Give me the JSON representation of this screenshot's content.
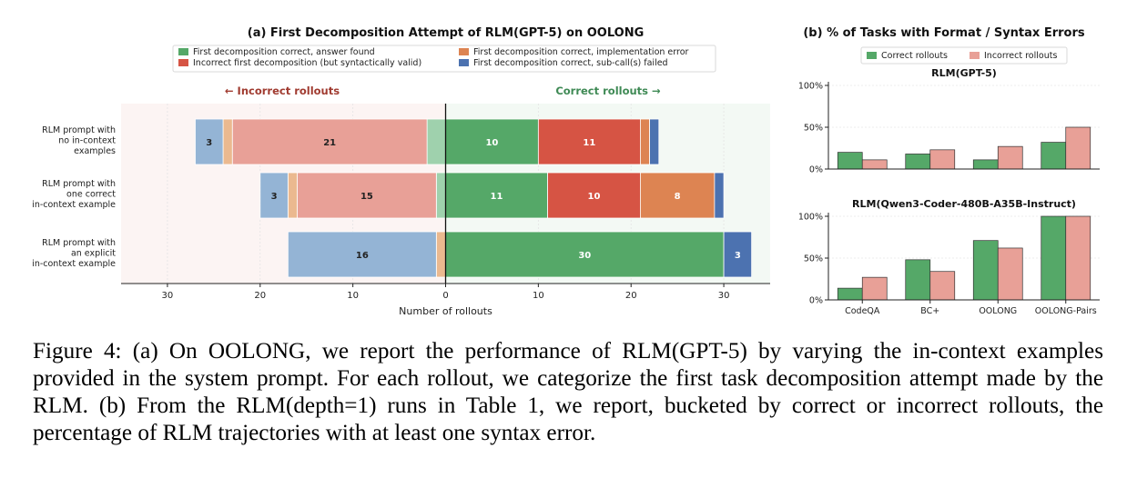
{
  "chart_data": [
    {
      "type": "bar",
      "orientation": "horizontal-diverging",
      "title": "(a) First Decomposition Attempt of RLM(GPT-5) on OOLONG",
      "xlabel": "Number of rollouts",
      "left_label": "← Incorrect rollouts",
      "right_label": "Correct rollouts →",
      "xticks": [
        {
          "value": -30,
          "label": "30"
        },
        {
          "value": -20,
          "label": "20"
        },
        {
          "value": -10,
          "label": "10"
        },
        {
          "value": 0,
          "label": "0"
        },
        {
          "value": 10,
          "label": "10"
        },
        {
          "value": 20,
          "label": "20"
        },
        {
          "value": 30,
          "label": "30"
        }
      ],
      "xlim": [
        -35,
        35
      ],
      "legend": [
        {
          "label": "First decomposition correct, answer found",
          "color": "#55a868"
        },
        {
          "label": "Incorrect first decomposition (but syntactically valid)",
          "color": "#d65444"
        },
        {
          "label": "First decomposition correct, implementation error",
          "color": "#dd8452"
        },
        {
          "label": "First decomposition correct, sub-call(s) failed",
          "color": "#4c72b0"
        }
      ],
      "legend_placement": "top",
      "categories": [
        [
          "RLM prompt with",
          "no in-context",
          "examples"
        ],
        [
          "RLM prompt with",
          "one correct",
          "in-context example"
        ],
        [
          "RLM prompt with",
          "an explicit",
          "in-context example"
        ]
      ],
      "correct": [
        {
          "answer_found": 10,
          "incorrect_decomp": 11,
          "impl_error": 1,
          "subcall_failed": 1
        },
        {
          "answer_found": 11,
          "incorrect_decomp": 10,
          "impl_error": 8,
          "subcall_failed": 1
        },
        {
          "answer_found": 30,
          "incorrect_decomp": 0,
          "impl_error": 0,
          "subcall_failed": 3
        }
      ],
      "incorrect": [
        {
          "answer_found": 2,
          "incorrect_decomp": 21,
          "impl_error": 1,
          "subcall_failed": 3
        },
        {
          "answer_found": 1,
          "incorrect_decomp": 15,
          "impl_error": 1,
          "subcall_failed": 3
        },
        {
          "answer_found": 0,
          "incorrect_decomp": 0,
          "impl_error": 1,
          "subcall_failed": 16
        }
      ]
    },
    {
      "type": "bar",
      "title": "(b) % of Tasks with Format / Syntax Errors",
      "legend": [
        {
          "label": "Correct rollouts",
          "color": "#55a868"
        },
        {
          "label": "Incorrect rollouts",
          "color": "#e8a097"
        }
      ],
      "legend_placement": "top",
      "categories": [
        "CodeQA",
        "BC+",
        "OOLONG",
        "OOLONG-Pairs"
      ],
      "yticks": [
        "0%",
        "50%",
        "100%"
      ],
      "ylim": [
        0,
        100
      ],
      "subplots": [
        {
          "title": "RLM(GPT-5)",
          "series": [
            {
              "name": "Correct rollouts",
              "values": [
                20,
                18,
                11,
                32
              ]
            },
            {
              "name": "Incorrect rollouts",
              "values": [
                11,
                23,
                27,
                50
              ]
            }
          ]
        },
        {
          "title": "RLM(Qwen3-Coder-480B-A35B-Instruct)",
          "series": [
            {
              "name": "Correct rollouts",
              "values": [
                14,
                48,
                71,
                100
              ]
            },
            {
              "name": "Incorrect rollouts",
              "values": [
                27,
                34,
                62,
                100
              ]
            }
          ]
        }
      ]
    }
  ],
  "caption": "Figure 4: (a) On OOLONG, we report the performance of RLM(GPT-5) by varying the in-context examples provided in the system prompt. For each rollout, we categorize the first task decomposition attempt made by the RLM. (b) From the RLM(depth=1) runs in Table 1, we report, bucketed by correct or incorrect rollouts, the percentage of RLM trajectories with at least one syntax error."
}
